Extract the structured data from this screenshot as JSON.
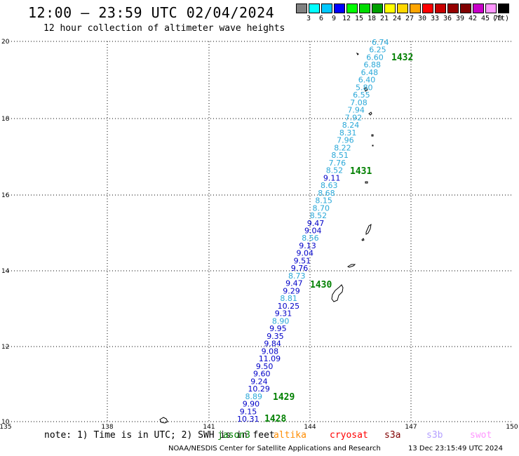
{
  "header": {
    "title": "12:00 – 23:59 UTC 02/04/2024",
    "subtitle": "12 hour collection of altimeter wave heights"
  },
  "legend": {
    "colors": [
      "#808080",
      "#00ffff",
      "#00c8ff",
      "#0000ff",
      "#00ff00",
      "#00dc00",
      "#00a000",
      "#ffff00",
      "#ffd700",
      "#ffa500",
      "#ff0000",
      "#c80000",
      "#960000",
      "#800000",
      "#c800c8",
      "#ff96ff",
      "#000000"
    ],
    "labels": [
      "3",
      "6",
      "9",
      "12",
      "15",
      "18",
      "21",
      "24",
      "27",
      "30",
      "33",
      "36",
      "39",
      "42",
      "45",
      "70",
      "(ft)"
    ]
  },
  "axes": {
    "lon_labels": [
      "135",
      "138",
      "141",
      "144",
      "147",
      "150"
    ],
    "lat_labels": [
      "20",
      "18",
      "16",
      "14",
      "12",
      "10"
    ]
  },
  "pass_labels": [
    "1432",
    "1431",
    "1430",
    "1429",
    "1428"
  ],
  "wave_heights": [
    {
      "text": "6.74",
      "color": "#2aa8d8"
    },
    {
      "text": "6.25",
      "color": "#2aa8d8"
    },
    {
      "text": "6.60",
      "color": "#2aa8d8"
    },
    {
      "text": "6.88",
      "color": "#2aa8d8"
    },
    {
      "text": "6.48",
      "color": "#2aa8d8"
    },
    {
      "text": "6.40",
      "color": "#2aa8d8"
    },
    {
      "text": "5.80",
      "color": "#2aa8d8"
    },
    {
      "text": "6.55",
      "color": "#2aa8d8"
    },
    {
      "text": "7.08",
      "color": "#2aa8d8"
    },
    {
      "text": "7.94",
      "color": "#2aa8d8"
    },
    {
      "text": "7.92",
      "color": "#2aa8d8"
    },
    {
      "text": "8.24",
      "color": "#2aa8d8"
    },
    {
      "text": "8.31",
      "color": "#2aa8d8"
    },
    {
      "text": "7.96",
      "color": "#2aa8d8"
    },
    {
      "text": "8.22",
      "color": "#2aa8d8"
    },
    {
      "text": "8.51",
      "color": "#2aa8d8"
    },
    {
      "text": "7.76",
      "color": "#2aa8d8"
    },
    {
      "text": "8.52",
      "color": "#2aa8d8"
    },
    {
      "text": "9.11",
      "color": "#0000c8"
    },
    {
      "text": "8.63",
      "color": "#2aa8d8"
    },
    {
      "text": "8.68",
      "color": "#2aa8d8"
    },
    {
      "text": "8.15",
      "color": "#2aa8d8"
    },
    {
      "text": "8.70",
      "color": "#2aa8d8"
    },
    {
      "text": "8.52",
      "color": "#2aa8d8"
    },
    {
      "text": "9.47",
      "color": "#0000c8"
    },
    {
      "text": "9.04",
      "color": "#0000c8"
    },
    {
      "text": "8.56",
      "color": "#2aa8d8"
    },
    {
      "text": "9.13",
      "color": "#0000c8"
    },
    {
      "text": "9.04",
      "color": "#0000c8"
    },
    {
      "text": "9.51",
      "color": "#0000c8"
    },
    {
      "text": "9.76",
      "color": "#0000c8"
    },
    {
      "text": "8.73",
      "color": "#2aa8d8"
    },
    {
      "text": "9.47",
      "color": "#0000c8"
    },
    {
      "text": "9.29",
      "color": "#0000c8"
    },
    {
      "text": "8.81",
      "color": "#2aa8d8"
    },
    {
      "text": "10.25",
      "color": "#0000c8"
    },
    {
      "text": "9.31",
      "color": "#0000c8"
    },
    {
      "text": "8.90",
      "color": "#2aa8d8"
    },
    {
      "text": "9.95",
      "color": "#0000c8"
    },
    {
      "text": "9.35",
      "color": "#0000c8"
    },
    {
      "text": "9.84",
      "color": "#0000c8"
    },
    {
      "text": "9.08",
      "color": "#0000c8"
    },
    {
      "text": "11.09",
      "color": "#0000c8"
    },
    {
      "text": "9.50",
      "color": "#0000c8"
    },
    {
      "text": "9.60",
      "color": "#0000c8"
    },
    {
      "text": "9.24",
      "color": "#0000c8"
    },
    {
      "text": "10.29",
      "color": "#0000c8"
    },
    {
      "text": "8.89",
      "color": "#2aa8d8"
    },
    {
      "text": "9.90",
      "color": "#0000c8"
    },
    {
      "text": "9.15",
      "color": "#0000c8"
    },
    {
      "text": "10.31",
      "color": "#0000c8"
    }
  ],
  "footer": {
    "note": "note:  1) Time is in UTC;  2) SWH is in feet",
    "satellites": [
      {
        "name": "jason3",
        "color": "#008000"
      },
      {
        "name": "altika",
        "color": "#ff8c00"
      },
      {
        "name": "cryosat",
        "color": "#ff0000"
      },
      {
        "name": "s3a",
        "color": "#800000"
      },
      {
        "name": "s3b",
        "color": "#b4a0ff"
      },
      {
        "name": "swot",
        "color": "#ff96ff"
      }
    ],
    "credit": "NOAA/NESDIS Center for Satellite Applications and Research",
    "timestamp": "13 Dec 23:15:49 UTC 2024"
  }
}
